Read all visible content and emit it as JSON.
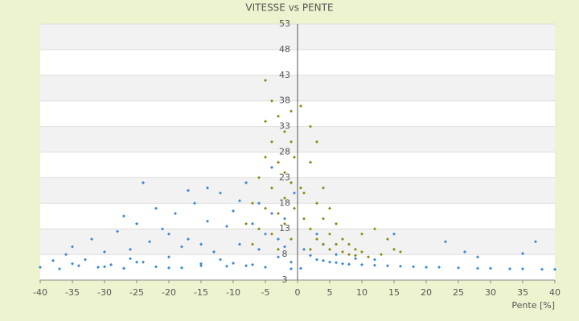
{
  "chart_data": {
    "type": "scatter",
    "title": "VITESSE vs PENTE",
    "x_label": "Pente [%]",
    "xlim": [
      -40,
      40
    ],
    "xticks": [
      -40,
      -35,
      -30,
      -25,
      -20,
      -15,
      -10,
      -5,
      0,
      5,
      10,
      15,
      20,
      25,
      30,
      35,
      40
    ],
    "ylim": [
      3,
      53
    ],
    "yticks": [
      3,
      8,
      13,
      18,
      23,
      28,
      33,
      38,
      43,
      48,
      53
    ],
    "grid": true,
    "series": [
      {
        "color": "#3a88d6",
        "x": [
          -40,
          -38,
          -37,
          -36,
          -35,
          -34,
          -33,
          -32,
          -31,
          -30,
          -29,
          -28,
          -27,
          -26,
          -25,
          -24,
          -23,
          -22,
          -21,
          -20,
          -19,
          -18,
          -17,
          -16,
          -15,
          -14,
          -13,
          -12,
          -11,
          -10,
          -9,
          -8,
          -7,
          -6,
          -5,
          -4,
          -3,
          -2,
          -1,
          -0.5,
          -27,
          -26,
          -22,
          -18,
          -17,
          -14,
          -11,
          -9,
          -7,
          -6,
          -4,
          -3,
          -2,
          -24,
          -20,
          -15,
          -12,
          -8,
          -35,
          -30,
          -25,
          -20,
          -15,
          -10,
          -5,
          -1,
          0.5,
          1,
          2,
          3,
          4,
          5,
          6,
          7,
          8,
          10,
          12,
          14,
          16,
          18,
          20,
          22,
          25,
          28,
          30,
          33,
          35,
          38,
          40,
          15,
          23,
          26,
          35,
          37,
          28,
          4,
          6,
          9,
          12,
          3
        ],
        "y": [
          5.5,
          6.8,
          5.2,
          8,
          9.5,
          5.8,
          7,
          11,
          5.5,
          8.5,
          6,
          12.5,
          5.3,
          9,
          14,
          6.5,
          10.5,
          5.6,
          13,
          7.5,
          16,
          5.4,
          11,
          18,
          6.2,
          14.5,
          8.5,
          20,
          5.7,
          16.5,
          10,
          22,
          6,
          18,
          12,
          25,
          7.5,
          15,
          6.5,
          20,
          15.5,
          7.2,
          17,
          9.5,
          20.5,
          21,
          13.5,
          18.5,
          14,
          9,
          16,
          11,
          9.5,
          22,
          12,
          10,
          7,
          5.8,
          6.2,
          5.6,
          6.5,
          5.4,
          5.8,
          6.3,
          5.5,
          5.2,
          5.3,
          9,
          7.8,
          7,
          6.8,
          6.5,
          6.4,
          6.2,
          6.1,
          6,
          5.9,
          5.8,
          5.7,
          5.6,
          5.5,
          5.5,
          5.4,
          5.3,
          5.3,
          5.2,
          5.2,
          5.1,
          5.1,
          12,
          10.5,
          8.5,
          8.2,
          10.5,
          7.5,
          10,
          8,
          7.2,
          7,
          12
        ]
      },
      {
        "color": "#8c8c1a",
        "x": [
          -8,
          -7,
          -7,
          -6,
          -6,
          -5,
          -5,
          -5,
          -5,
          -4,
          -4,
          -4,
          -4,
          -3,
          -3,
          -3,
          -3,
          -2,
          -2,
          -2,
          -2,
          -1,
          -1,
          -1,
          -1,
          -0.5,
          -0.5,
          0.5,
          0.5,
          1,
          1,
          2,
          2,
          2,
          2,
          3,
          3,
          3,
          4,
          4,
          4,
          5,
          5,
          5,
          6,
          6,
          7,
          7,
          8,
          8,
          9,
          9,
          10,
          10,
          11,
          12,
          13,
          14,
          15,
          16
        ],
        "y": [
          14,
          18,
          10,
          23,
          13,
          27,
          34,
          42,
          17,
          30,
          38,
          21,
          12,
          35,
          26,
          16,
          9,
          32,
          24,
          19,
          14,
          30,
          36,
          22,
          11,
          27,
          17,
          37,
          21,
          20,
          15,
          26,
          33,
          13,
          9,
          30,
          18,
          11,
          21,
          15,
          10,
          17,
          12,
          9,
          14,
          10,
          11,
          8.5,
          10,
          8,
          9,
          7.8,
          12,
          8.5,
          7.5,
          13,
          8,
          11,
          9,
          8.5
        ]
      }
    ]
  }
}
